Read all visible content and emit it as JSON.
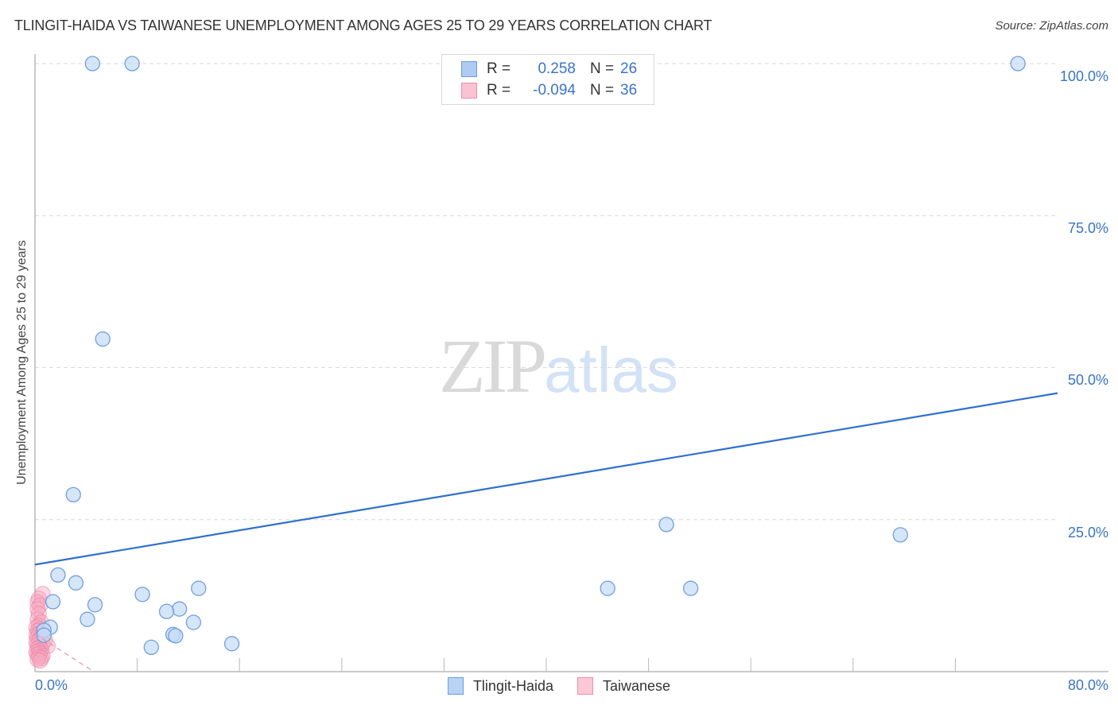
{
  "header": {
    "title": "TLINGIT-HAIDA VS TAIWANESE UNEMPLOYMENT AMONG AGES 25 TO 29 YEARS CORRELATION CHART",
    "source": "Source: ZipAtlas.com"
  },
  "watermark": {
    "zip": "ZIP",
    "atlas": "atlas"
  },
  "legend": {
    "rows": [
      {
        "name": "Tlingit-Haida",
        "r_label": "R =",
        "r_value": "0.258",
        "n_label": "N =",
        "n_value": "26",
        "color": "#aecbf2",
        "border": "#6a9de0"
      },
      {
        "name": "Taiwanese",
        "r_label": "R =",
        "r_value": "-0.094",
        "n_label": "N =",
        "n_value": "36",
        "color": "#f9c3d3",
        "border": "#ee8eaa"
      }
    ]
  },
  "axes": {
    "y_label": "Unemployment Among Ages 25 to 29 years",
    "x_min_label": "0.0%",
    "x_max_label": "80.0%",
    "y_ticks": [
      "100.0%",
      "75.0%",
      "50.0%",
      "25.0%"
    ]
  },
  "bottom_legend": {
    "items": [
      {
        "label": "Tlingit-Haida",
        "color": "#b9d3f5",
        "border": "#6a9de0"
      },
      {
        "label": "Taiwanese",
        "color": "#fbc8d7",
        "border": "#ee8eaa"
      }
    ]
  },
  "colors": {
    "blue_fill": "#c5dbf6",
    "blue_stroke": "#6f9fdf",
    "blue_line": "#2f6fd0",
    "pink_fill": "#f6a9c1",
    "pink_stroke": "#ea7a9c",
    "pink_line": "#ec8fab",
    "grid": "#d9d9d9",
    "axis": "#b8b8b8",
    "tick_text": "#3a74c8"
  },
  "chart_data": {
    "type": "scatter",
    "title": "TLINGIT-HAIDA VS TAIWANESE UNEMPLOYMENT AMONG AGES 25 TO 29 YEARS CORRELATION CHART",
    "xlabel": "",
    "ylabel": "Unemployment Among Ages 25 to 29 years",
    "xlim": [
      0,
      80
    ],
    "ylim": [
      0,
      100
    ],
    "x_tick_labels": [
      "0.0%",
      "80.0%"
    ],
    "y_tick_labels": [
      "25.0%",
      "50.0%",
      "75.0%",
      "100.0%"
    ],
    "grid": "horizontal dashed",
    "legend_position": "top-center and bottom",
    "series": [
      {
        "name": "Tlingit-Haida",
        "R": 0.258,
        "N": 26,
        "points": [
          [
            4.5,
            100
          ],
          [
            7.6,
            100
          ],
          [
            76.9,
            100
          ],
          [
            5.3,
            54.7
          ],
          [
            3.0,
            29.1
          ],
          [
            49.4,
            24.2
          ],
          [
            67.7,
            22.5
          ],
          [
            1.8,
            15.9
          ],
          [
            3.2,
            14.6
          ],
          [
            12.8,
            13.7
          ],
          [
            44.8,
            13.7
          ],
          [
            51.3,
            13.7
          ],
          [
            8.4,
            12.7
          ],
          [
            1.4,
            11.5
          ],
          [
            4.7,
            11.0
          ],
          [
            11.3,
            10.3
          ],
          [
            10.3,
            9.9
          ],
          [
            4.1,
            8.6
          ],
          [
            12.4,
            8.1
          ],
          [
            1.2,
            7.3
          ],
          [
            0.7,
            6.8
          ],
          [
            0.7,
            6.0
          ],
          [
            10.8,
            6.1
          ],
          [
            11.0,
            5.9
          ],
          [
            9.1,
            4.0
          ],
          [
            15.4,
            4.6
          ]
        ],
        "trendline": {
          "x": [
            0,
            80
          ],
          "y": [
            17.6,
            45.8
          ],
          "style": "solid"
        }
      },
      {
        "name": "Taiwanese",
        "R": -0.094,
        "N": 36,
        "points": [
          [
            0.6,
            12.8
          ],
          [
            0.3,
            12.0
          ],
          [
            0.2,
            11.4
          ],
          [
            0.4,
            10.9
          ],
          [
            0.2,
            10.3
          ],
          [
            0.3,
            9.5
          ],
          [
            0.2,
            8.6
          ],
          [
            0.5,
            8.1
          ],
          [
            0.3,
            7.6
          ],
          [
            0.1,
            7.3
          ],
          [
            0.4,
            7.0
          ],
          [
            0.2,
            6.7
          ],
          [
            0.6,
            6.4
          ],
          [
            0.3,
            6.2
          ],
          [
            0.1,
            6.0
          ],
          [
            0.5,
            5.8
          ],
          [
            0.2,
            5.6
          ],
          [
            0.4,
            5.4
          ],
          [
            0.8,
            5.2
          ],
          [
            0.3,
            5.0
          ],
          [
            0.1,
            4.8
          ],
          [
            0.6,
            4.6
          ],
          [
            0.2,
            4.4
          ],
          [
            1.0,
            4.2
          ],
          [
            0.4,
            4.0
          ],
          [
            0.2,
            3.8
          ],
          [
            0.5,
            3.6
          ],
          [
            0.3,
            3.4
          ],
          [
            0.1,
            3.2
          ],
          [
            0.4,
            3.0
          ],
          [
            0.2,
            2.8
          ],
          [
            0.6,
            2.6
          ],
          [
            0.3,
            2.4
          ],
          [
            0.5,
            2.2
          ],
          [
            0.2,
            2.0
          ],
          [
            0.4,
            1.8
          ]
        ],
        "trendline": {
          "x": [
            0,
            4.6
          ],
          "y": [
            6.2,
            0
          ],
          "style": "dashed"
        }
      }
    ]
  }
}
